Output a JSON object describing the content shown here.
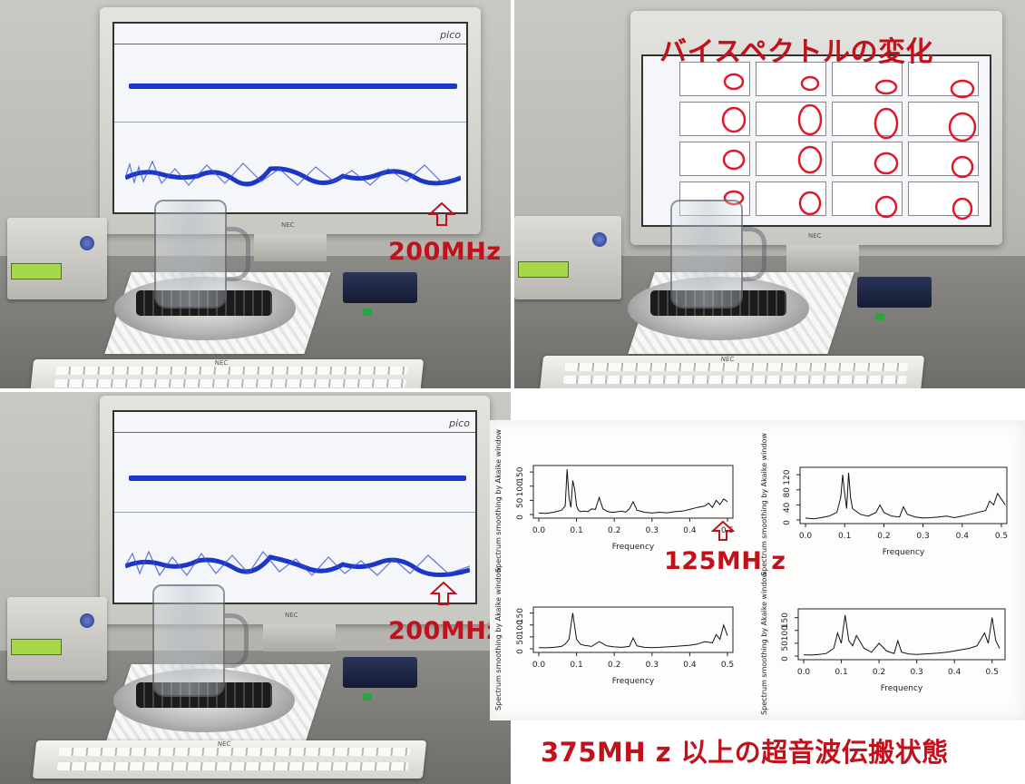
{
  "annotations": {
    "top_right_title": "バイスペクトルの変化",
    "label_200mhz": "200MHz",
    "label_125mhz": "125MH z",
    "bottom_caption": "375MH z 以上の超音波伝搬状態"
  },
  "monitor": {
    "brand": "NEC",
    "software_logo": "pico"
  },
  "keyboard": {
    "brand": "NEC"
  },
  "colors": {
    "annotation_red": "#c0121d",
    "trace_blue": "#1c36c8",
    "circle_red": "#e0182a"
  },
  "chart_data": [
    {
      "type": "line",
      "ylabel": "Spectrum smoothing by  Akaike  window",
      "xlabel": "Frequency",
      "xticks": [
        "0.0",
        "0.1",
        "0.2",
        "0.3",
        "0.4",
        "0.5"
      ],
      "yticks": [
        "0",
        "50",
        "100",
        "150"
      ],
      "xlim": [
        0,
        0.5
      ],
      "ylim": [
        0,
        160
      ],
      "x": [
        0,
        0.02,
        0.04,
        0.06,
        0.07,
        0.075,
        0.08,
        0.085,
        0.09,
        0.095,
        0.1,
        0.105,
        0.11,
        0.12,
        0.13,
        0.14,
        0.15,
        0.16,
        0.17,
        0.18,
        0.19,
        0.2,
        0.21,
        0.22,
        0.23,
        0.24,
        0.25,
        0.26,
        0.28,
        0.3,
        0.32,
        0.34,
        0.36,
        0.38,
        0.4,
        0.42,
        0.44,
        0.45,
        0.46,
        0.47,
        0.48,
        0.49,
        0.5
      ],
      "y": [
        5,
        4,
        8,
        15,
        30,
        160,
        60,
        25,
        120,
        90,
        30,
        15,
        10,
        12,
        10,
        20,
        18,
        60,
        20,
        12,
        8,
        8,
        10,
        12,
        8,
        20,
        45,
        15,
        8,
        5,
        8,
        6,
        10,
        12,
        18,
        25,
        30,
        40,
        25,
        50,
        35,
        55,
        45
      ]
    },
    {
      "type": "line",
      "ylabel": "Spectrum smoothing by  Akaike  window",
      "xlabel": "Frequency",
      "xticks": [
        "0.0",
        "0.1",
        "0.2",
        "0.3",
        "0.4",
        "0.5"
      ],
      "yticks": [
        "0",
        "40",
        "80",
        "120"
      ],
      "xlim": [
        0,
        0.5
      ],
      "ylim": [
        0,
        130
      ],
      "x": [
        0,
        0.02,
        0.04,
        0.06,
        0.08,
        0.09,
        0.095,
        0.1,
        0.105,
        0.11,
        0.115,
        0.12,
        0.14,
        0.16,
        0.18,
        0.19,
        0.2,
        0.22,
        0.24,
        0.25,
        0.26,
        0.28,
        0.3,
        0.32,
        0.34,
        0.36,
        0.38,
        0.4,
        0.42,
        0.44,
        0.46,
        0.47,
        0.48,
        0.49,
        0.5,
        0.51
      ],
      "y": [
        5,
        3,
        6,
        10,
        20,
        60,
        120,
        70,
        30,
        125,
        60,
        30,
        15,
        10,
        20,
        40,
        20,
        10,
        8,
        35,
        15,
        8,
        5,
        6,
        8,
        10,
        6,
        10,
        15,
        20,
        25,
        50,
        40,
        70,
        55,
        40
      ]
    },
    {
      "type": "line",
      "ylabel": "Spectrum smoothing by  Akaike  window",
      "xlabel": "Frequency",
      "xticks": [
        "0.0",
        "0.1",
        "0.2",
        "0.3",
        "0.4",
        "0.5"
      ],
      "yticks": [
        "0",
        "50",
        "100",
        "150"
      ],
      "xlim": [
        0,
        0.5
      ],
      "ylim": [
        0,
        160
      ],
      "x": [
        0,
        0.02,
        0.04,
        0.06,
        0.07,
        0.08,
        0.09,
        0.1,
        0.11,
        0.12,
        0.14,
        0.16,
        0.18,
        0.2,
        0.22,
        0.24,
        0.25,
        0.26,
        0.28,
        0.3,
        0.32,
        0.34,
        0.36,
        0.38,
        0.4,
        0.42,
        0.44,
        0.46,
        0.47,
        0.48,
        0.49,
        0.5
      ],
      "y": [
        5,
        4,
        6,
        10,
        20,
        40,
        150,
        40,
        20,
        15,
        10,
        30,
        12,
        8,
        6,
        10,
        45,
        12,
        6,
        5,
        6,
        8,
        10,
        12,
        15,
        20,
        30,
        25,
        60,
        40,
        100,
        55
      ]
    },
    {
      "type": "line",
      "ylabel": "Spectrum smoothing by  Akaike  window",
      "xlabel": "Frequency",
      "xticks": [
        "0.0",
        "0.1",
        "0.2",
        "0.3",
        "0.4",
        "0.5"
      ],
      "yticks": [
        "0",
        "50",
        "100",
        "150"
      ],
      "xlim": [
        0,
        0.52
      ],
      "ylim": [
        0,
        170
      ],
      "x": [
        0,
        0.02,
        0.04,
        0.06,
        0.08,
        0.09,
        0.1,
        0.11,
        0.12,
        0.13,
        0.14,
        0.16,
        0.18,
        0.2,
        0.22,
        0.24,
        0.25,
        0.26,
        0.28,
        0.3,
        0.32,
        0.34,
        0.36,
        0.38,
        0.4,
        0.42,
        0.44,
        0.46,
        0.48,
        0.49,
        0.5,
        0.51,
        0.52
      ],
      "y": [
        5,
        4,
        6,
        10,
        30,
        90,
        50,
        160,
        60,
        40,
        80,
        30,
        15,
        50,
        20,
        10,
        60,
        15,
        8,
        6,
        8,
        10,
        12,
        15,
        20,
        25,
        30,
        40,
        90,
        50,
        150,
        60,
        30
      ]
    }
  ]
}
